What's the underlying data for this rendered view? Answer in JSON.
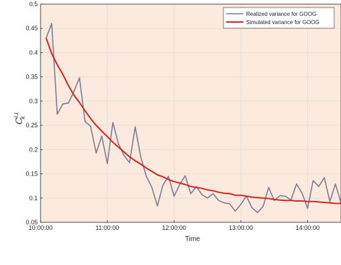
{
  "chart_data": {
    "type": "line",
    "xlabel": "Time",
    "ylabel": {
      "base": "C",
      "sup": "i,i",
      "sub": "k"
    },
    "xticks": [
      "10:00:00",
      "11:00:00",
      "12:00:00",
      "13:00:00",
      "14:00:00"
    ],
    "xtick_positions_min": [
      600,
      660,
      720,
      780,
      840
    ],
    "xlim_min": [
      600,
      870
    ],
    "yticks": [
      "0.05",
      "0.1",
      "0.15",
      "0.2",
      "0.25",
      "0.3",
      "0.35",
      "0.4",
      "0.45",
      "0.5"
    ],
    "ylim": [
      0.05,
      0.5
    ],
    "grid": true,
    "background": "#fdeadf",
    "legend_position": "top-right",
    "series": [
      {
        "name": "Realized variance for GOOG",
        "color": "#7a7b95",
        "x": [
          605,
          610,
          615,
          620,
          625,
          630,
          635,
          640,
          645,
          650,
          655,
          660,
          665,
          670,
          675,
          680,
          685,
          690,
          695,
          700,
          705,
          710,
          715,
          720,
          725,
          730,
          735,
          740,
          745,
          750,
          755,
          760,
          765,
          770,
          775,
          780,
          785,
          790,
          795,
          800,
          805,
          810,
          815,
          820,
          825,
          830,
          835,
          840,
          845,
          850,
          855,
          860,
          865,
          870
        ],
        "y": [
          0.43,
          0.46,
          0.273,
          0.294,
          0.296,
          0.32,
          0.348,
          0.258,
          0.248,
          0.193,
          0.228,
          0.171,
          0.256,
          0.212,
          0.188,
          0.173,
          0.247,
          0.185,
          0.145,
          0.122,
          0.084,
          0.127,
          0.145,
          0.104,
          0.128,
          0.146,
          0.109,
          0.124,
          0.107,
          0.1,
          0.109,
          0.095,
          0.09,
          0.088,
          0.073,
          0.087,
          0.104,
          0.08,
          0.07,
          0.083,
          0.122,
          0.095,
          0.105,
          0.104,
          0.096,
          0.129,
          0.11,
          0.079,
          0.136,
          0.124,
          0.142,
          0.093,
          0.129,
          0.09
        ]
      },
      {
        "name": "Simulated variance for GOOG",
        "color": "#d9211f",
        "x": [
          605,
          610,
          615,
          620,
          625,
          630,
          635,
          640,
          645,
          650,
          655,
          660,
          665,
          670,
          675,
          680,
          685,
          690,
          695,
          700,
          705,
          710,
          715,
          720,
          725,
          730,
          735,
          740,
          745,
          750,
          755,
          760,
          765,
          770,
          775,
          780,
          785,
          790,
          795,
          800,
          805,
          810,
          815,
          820,
          825,
          830,
          835,
          840,
          845,
          850,
          855,
          860,
          865,
          870
        ],
        "y": [
          0.43,
          0.398,
          0.375,
          0.355,
          0.332,
          0.312,
          0.297,
          0.28,
          0.264,
          0.25,
          0.238,
          0.227,
          0.215,
          0.205,
          0.195,
          0.185,
          0.177,
          0.17,
          0.162,
          0.155,
          0.148,
          0.144,
          0.138,
          0.134,
          0.131,
          0.128,
          0.124,
          0.122,
          0.12,
          0.117,
          0.115,
          0.112,
          0.11,
          0.109,
          0.106,
          0.106,
          0.104,
          0.102,
          0.101,
          0.1,
          0.099,
          0.097,
          0.096,
          0.095,
          0.095,
          0.094,
          0.094,
          0.093,
          0.093,
          0.092,
          0.091,
          0.09,
          0.089,
          0.089
        ]
      }
    ]
  }
}
